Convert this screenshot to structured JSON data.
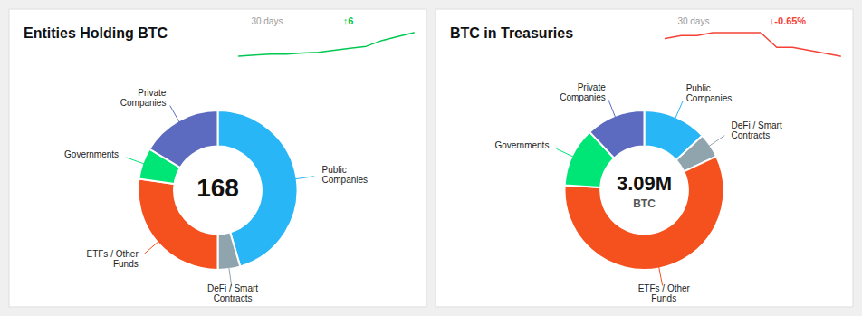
{
  "chart_data": [
    {
      "type": "donut",
      "title": "Entities Holding BTC",
      "center_text": "168",
      "categories": [
        "Public\nCompanies",
        "DeFi / Smart\nContracts",
        "ETFs / Other\nFunds",
        "Governments",
        "Private\nCompanies"
      ],
      "values": [
        50,
        5,
        30,
        7,
        18
      ],
      "colors": [
        "#29b6f6",
        "#90a4ae",
        "#f4511e",
        "#00e676",
        "#5c6bc0"
      ],
      "trend": {
        "label": "30 days",
        "change": "↑6",
        "color": "#00c853",
        "values": [
          0,
          0.3,
          0.5,
          0.5,
          0.8,
          1.0,
          1.5,
          2.0,
          2.5,
          4.0,
          5.0,
          6.0
        ],
        "ylim": [
          0,
          6
        ]
      }
    },
    {
      "type": "donut",
      "title": "BTC in Treasuries",
      "center_text": "3.09M",
      "center_sub": "BTC",
      "categories": [
        "Public\nCompanies",
        "DeFi / Smart\nContracts",
        "ETFs / Other\nFunds",
        "Governments",
        "Private\nCompanies"
      ],
      "values": [
        13,
        5,
        58,
        12,
        12
      ],
      "colors": [
        "#29b6f6",
        "#90a4ae",
        "#f4511e",
        "#00e676",
        "#5c6bc0"
      ],
      "trend": {
        "label": "30 days",
        "change": "↓-0.65%",
        "color": "#f44336",
        "values": [
          3.5,
          4.0,
          4.0,
          4.5,
          4.5,
          4.5,
          4.5,
          2.0,
          2.0,
          1.5,
          1.0,
          0.5
        ],
        "ylim": [
          0.5,
          4.5
        ]
      }
    }
  ]
}
